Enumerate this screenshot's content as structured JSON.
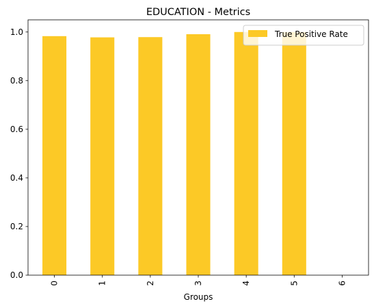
{
  "chart_data": {
    "type": "bar",
    "title": "EDUCATION - Metrics",
    "xlabel": "Groups",
    "ylabel": "",
    "categories": [
      "0",
      "1",
      "2",
      "3",
      "4",
      "5",
      "6"
    ],
    "series": [
      {
        "name": "True Positive Rate",
        "values": [
          0.983,
          0.978,
          0.979,
          0.991,
          1.0,
          1.0,
          0
        ],
        "color": "#fcc926"
      }
    ],
    "ylim": [
      0,
      1.05
    ],
    "yticks": [
      "0.0",
      "0.2",
      "0.4",
      "0.6",
      "0.8",
      "1.0"
    ],
    "grid": false,
    "legend_position": "top-right"
  }
}
